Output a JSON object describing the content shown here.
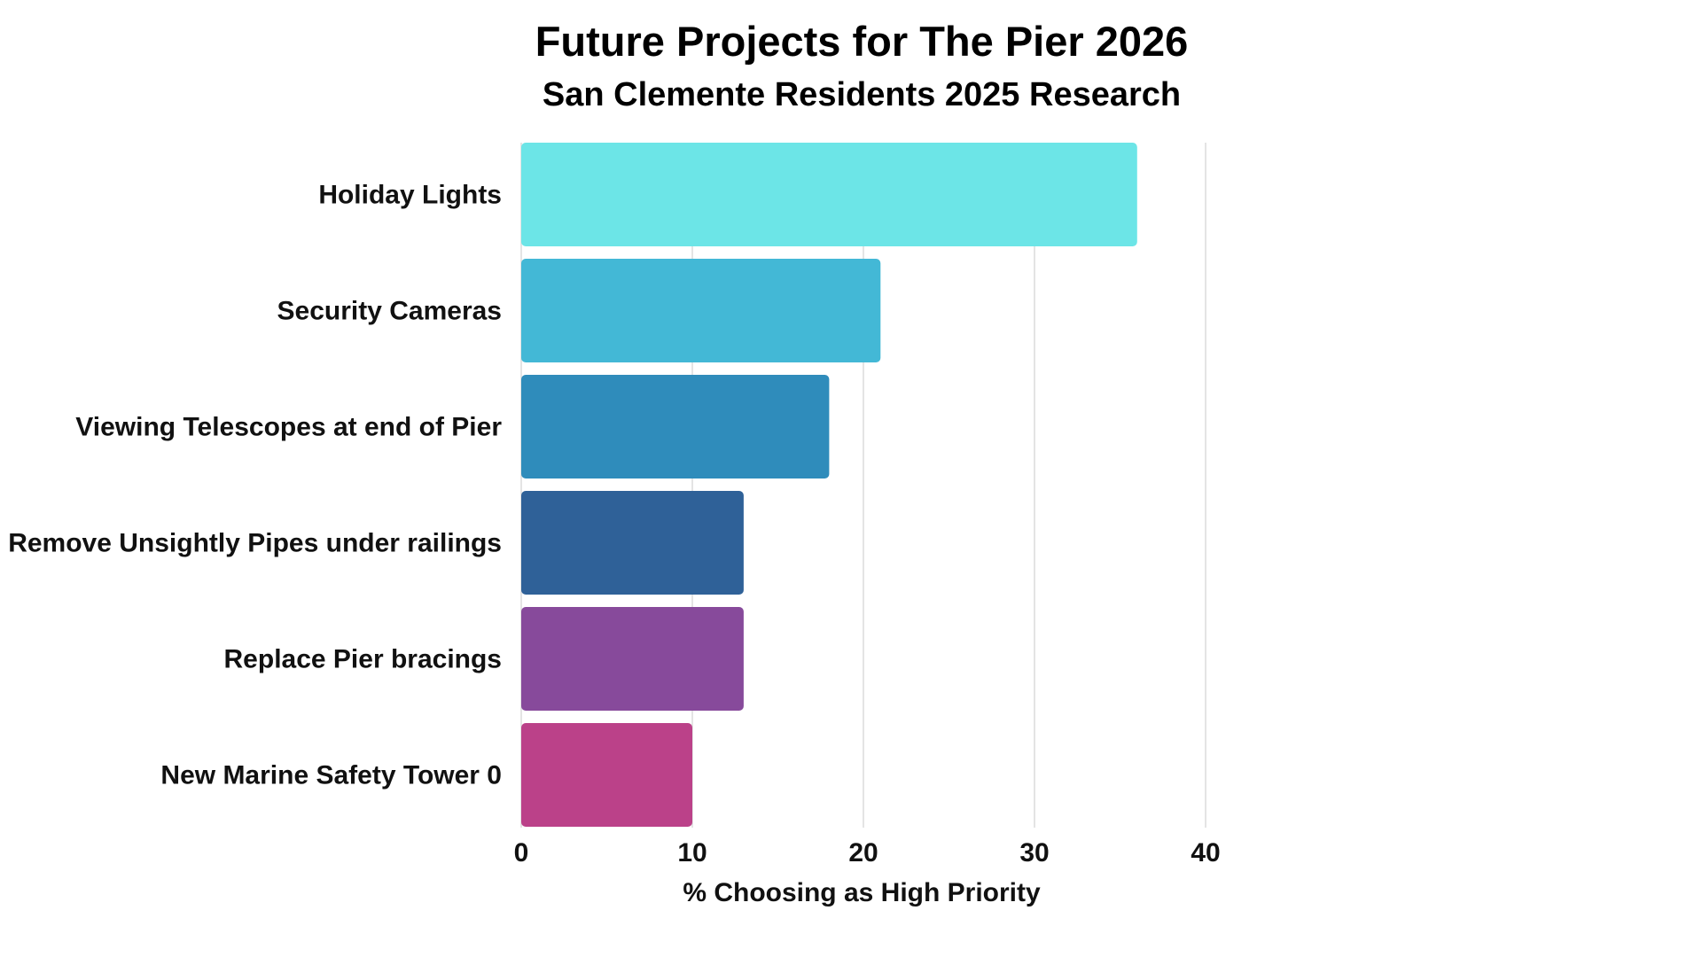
{
  "chart_data": {
    "type": "bar",
    "orientation": "horizontal",
    "title": "Future Projects for The Pier 2026",
    "subtitle": "San Clemente Residents 2025 Research",
    "xlabel": "% Choosing as High Priority",
    "ylabel": "",
    "xlim": [
      0,
      40
    ],
    "ticks": [
      "0",
      "10",
      "20",
      "30",
      "40"
    ],
    "tick_values": [
      0,
      10,
      20,
      30,
      40
    ],
    "grid": true,
    "categories": [
      "Holiday Lights",
      "Security Cameras",
      "Viewing Telescopes at end of Pier",
      "Remove Unsightly Pipes under railings",
      "Replace Pier bracings",
      "New Marine Safety Tower 0"
    ],
    "values": [
      36,
      21,
      18,
      13,
      13,
      10
    ],
    "colors": [
      "#6ce5e7",
      "#43b8d6",
      "#2f8cbb",
      "#2f6198",
      "#874a9b",
      "#bb4189"
    ]
  }
}
